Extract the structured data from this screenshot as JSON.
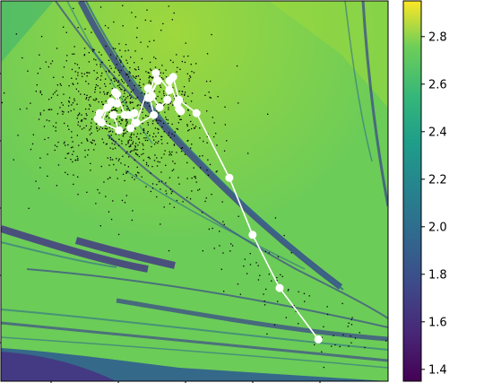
{
  "chart_data": [
    {
      "type": "heatmap",
      "title": "",
      "xlabel": "",
      "ylabel": "",
      "grid": false,
      "overlay": {
        "type": "line",
        "color": "#ffffff",
        "marker": "circle",
        "path": [
          [
            0.82,
            0.11
          ],
          [
            0.72,
            0.245
          ],
          [
            0.65,
            0.385
          ],
          [
            0.59,
            0.535
          ],
          [
            0.505,
            0.705
          ],
          [
            0.46,
            0.74
          ],
          [
            0.445,
            0.8
          ],
          [
            0.435,
            0.765
          ],
          [
            0.4,
            0.81
          ],
          [
            0.38,
            0.745
          ],
          [
            0.405,
            0.79
          ],
          [
            0.385,
            0.745
          ],
          [
            0.395,
            0.7
          ],
          [
            0.335,
            0.665
          ],
          [
            0.345,
            0.705
          ],
          [
            0.29,
            0.7
          ],
          [
            0.305,
            0.66
          ],
          [
            0.26,
            0.68
          ],
          [
            0.275,
            0.72
          ],
          [
            0.25,
            0.69
          ],
          [
            0.285,
            0.735
          ],
          [
            0.255,
            0.705
          ],
          [
            0.3,
            0.73
          ],
          [
            0.295,
            0.76
          ],
          [
            0.3,
            0.755
          ],
          [
            0.32,
            0.7
          ],
          [
            0.33,
            0.7
          ],
          [
            0.35,
            0.68
          ],
          [
            0.38,
            0.77
          ],
          [
            0.39,
            0.75
          ],
          [
            0.41,
            0.72
          ],
          [
            0.43,
            0.74
          ],
          [
            0.435,
            0.79
          ],
          [
            0.455,
            0.73
          ],
          [
            0.46,
            0.715
          ],
          [
            0.465,
            0.71
          ]
        ]
      },
      "scatter_cloud": {
        "color": "#000000",
        "center": [
          0.32,
          0.71
        ],
        "spread": [
          0.11,
          0.1
        ]
      }
    },
    {
      "type": "colorbar",
      "colormap": "viridis",
      "range": [
        1.35,
        2.95
      ],
      "ticks": [
        2.8,
        2.6,
        2.4,
        2.2,
        2.0,
        1.8,
        1.6,
        1.4
      ],
      "tick_labels": [
        "2.8",
        "2.6",
        "2.4",
        "2.2",
        "2.0",
        "1.8",
        "1.6",
        "1.4"
      ]
    }
  ]
}
